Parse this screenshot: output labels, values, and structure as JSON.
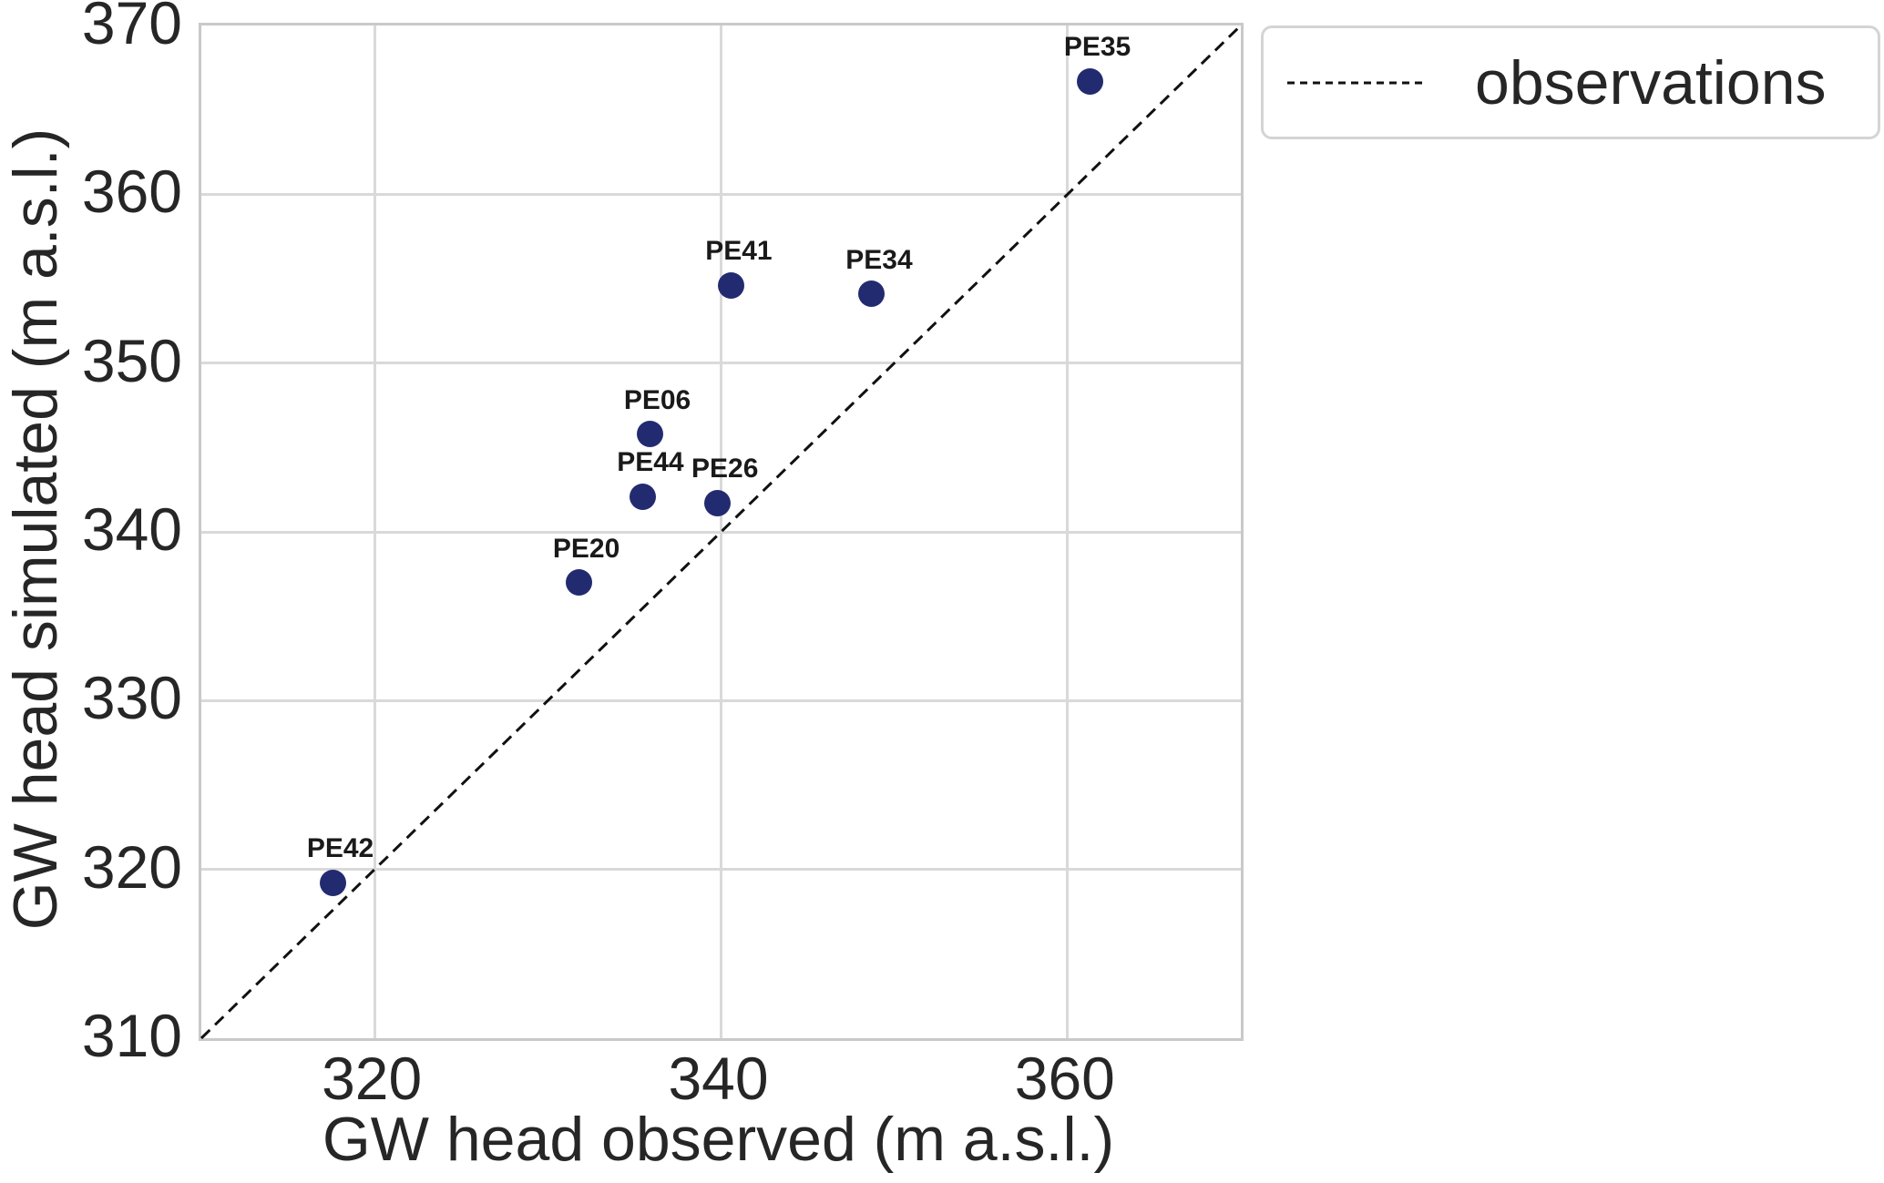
{
  "figure": {
    "background": "#ffffff",
    "text_color": "#262626",
    "grid_color": "#d9d9d9",
    "spine_color": "#c9c9c9"
  },
  "chart_data": {
    "type": "scatter",
    "title": "",
    "xlabel": "GW head observed (m a.s.l.)",
    "ylabel": "GW head simulated (m a.s.l.)",
    "xlim": [
      310,
      370
    ],
    "ylim": [
      310,
      370
    ],
    "x_ticks": [
      320,
      340,
      360
    ],
    "y_ticks": [
      310,
      320,
      330,
      340,
      350,
      360,
      370
    ],
    "grid": true,
    "marker_color": "#232B70",
    "marker_shape": "circle",
    "points": [
      {
        "label": "PE42",
        "x": 317.6,
        "y": 319.2
      },
      {
        "label": "PE20",
        "x": 331.8,
        "y": 337.0
      },
      {
        "label": "PE44",
        "x": 335.5,
        "y": 342.1
      },
      {
        "label": "PE06",
        "x": 335.9,
        "y": 345.8
      },
      {
        "label": "PE26",
        "x": 339.8,
        "y": 341.7
      },
      {
        "label": "PE41",
        "x": 340.6,
        "y": 354.6
      },
      {
        "label": "PE34",
        "x": 348.7,
        "y": 354.1
      },
      {
        "label": "PE35",
        "x": 361.3,
        "y": 366.7
      }
    ],
    "reference_line": {
      "kind": "identity",
      "from": [
        310,
        310
      ],
      "to": [
        370,
        370
      ],
      "style": "dashed",
      "color": "#111111"
    },
    "legend": {
      "position": "upper-right-outside",
      "entries": [
        {
          "label": "observations",
          "marker": "dashed-line"
        }
      ]
    }
  }
}
